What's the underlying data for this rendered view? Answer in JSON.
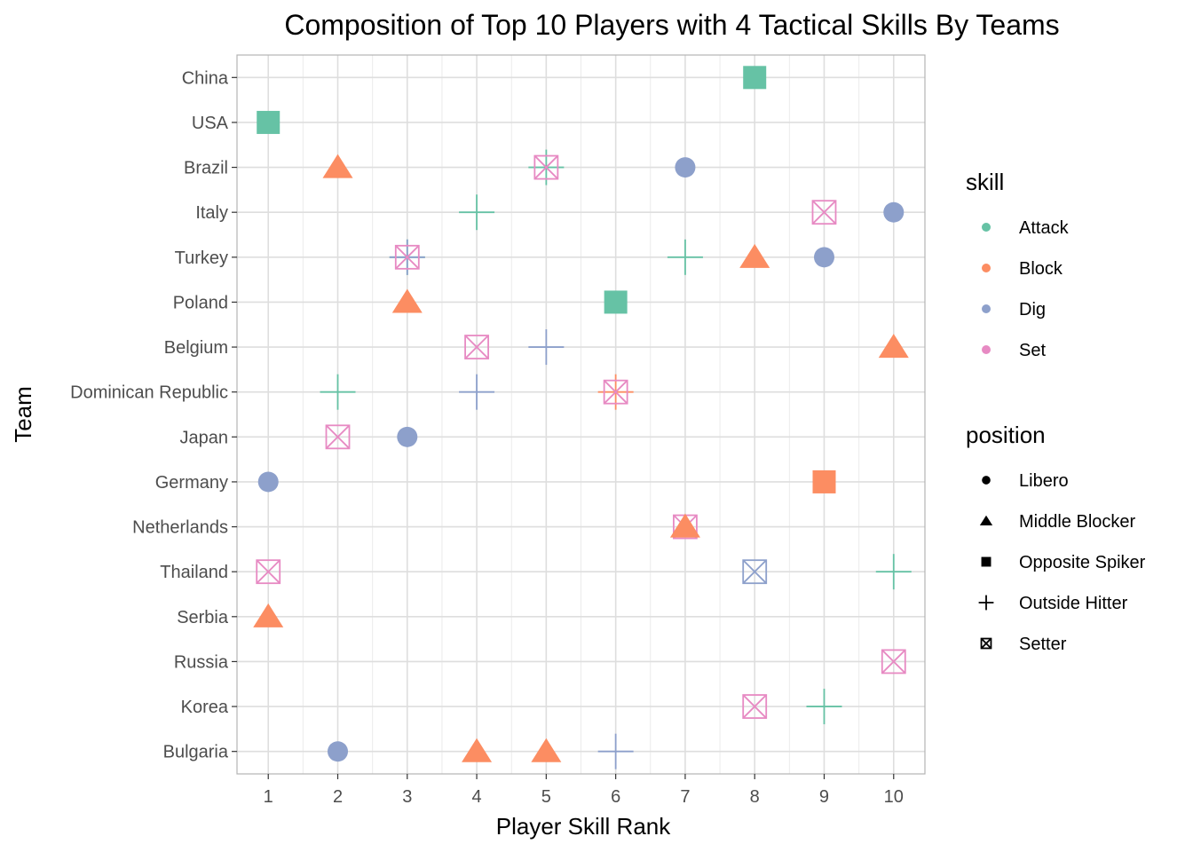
{
  "chart_data": {
    "type": "scatter",
    "title": "Composition of Top 10 Players with 4 Tactical Skills By Teams",
    "xlabel": "Player Skill Rank",
    "ylabel": "Team",
    "x_ticks": [
      1,
      2,
      3,
      4,
      5,
      6,
      7,
      8,
      9,
      10
    ],
    "xlim": [
      0.55,
      10.45
    ],
    "teams": [
      "China",
      "USA",
      "Brazil",
      "Italy",
      "Turkey",
      "Poland",
      "Belgium",
      "Dominican Republic",
      "Japan",
      "Germany",
      "Netherlands",
      "Thailand",
      "Serbia",
      "Russia",
      "Korea",
      "Bulgaria"
    ],
    "grid": true,
    "legend_position": "right",
    "legends": {
      "skill": {
        "title": "skill",
        "items": [
          {
            "label": "Attack",
            "color": "#66c2a5"
          },
          {
            "label": "Block",
            "color": "#fc8d62"
          },
          {
            "label": "Dig",
            "color": "#8da0cb"
          },
          {
            "label": "Set",
            "color": "#e78ac3"
          }
        ]
      },
      "position": {
        "title": "position",
        "items": [
          {
            "label": "Libero",
            "shape": "circle"
          },
          {
            "label": "Middle Blocker",
            "shape": "triangle"
          },
          {
            "label": "Opposite Spiker",
            "shape": "square"
          },
          {
            "label": "Outside Hitter",
            "shape": "plus"
          },
          {
            "label": "Setter",
            "shape": "boxx"
          }
        ]
      }
    },
    "points": [
      {
        "team": "China",
        "rank": 8,
        "skill": "Attack",
        "position": "Opposite Spiker"
      },
      {
        "team": "USA",
        "rank": 1,
        "skill": "Attack",
        "position": "Opposite Spiker"
      },
      {
        "team": "Brazil",
        "rank": 2,
        "skill": "Block",
        "position": "Middle Blocker"
      },
      {
        "team": "Brazil",
        "rank": 5,
        "skill": "Attack",
        "position": "Outside Hitter"
      },
      {
        "team": "Brazil",
        "rank": 5,
        "skill": "Set",
        "position": "Setter"
      },
      {
        "team": "Brazil",
        "rank": 7,
        "skill": "Dig",
        "position": "Libero"
      },
      {
        "team": "Italy",
        "rank": 4,
        "skill": "Attack",
        "position": "Outside Hitter"
      },
      {
        "team": "Italy",
        "rank": 9,
        "skill": "Set",
        "position": "Setter"
      },
      {
        "team": "Italy",
        "rank": 10,
        "skill": "Dig",
        "position": "Libero"
      },
      {
        "team": "Turkey",
        "rank": 3,
        "skill": "Attack",
        "position": "Outside Hitter"
      },
      {
        "team": "Turkey",
        "rank": 3,
        "skill": "Dig",
        "position": "Outside Hitter"
      },
      {
        "team": "Turkey",
        "rank": 3,
        "skill": "Set",
        "position": "Setter"
      },
      {
        "team": "Turkey",
        "rank": 7,
        "skill": "Attack",
        "position": "Outside Hitter"
      },
      {
        "team": "Turkey",
        "rank": 8,
        "skill": "Block",
        "position": "Middle Blocker"
      },
      {
        "team": "Turkey",
        "rank": 9,
        "skill": "Dig",
        "position": "Libero"
      },
      {
        "team": "Poland",
        "rank": 3,
        "skill": "Block",
        "position": "Middle Blocker"
      },
      {
        "team": "Poland",
        "rank": 6,
        "skill": "Attack",
        "position": "Opposite Spiker"
      },
      {
        "team": "Belgium",
        "rank": 4,
        "skill": "Set",
        "position": "Setter"
      },
      {
        "team": "Belgium",
        "rank": 5,
        "skill": "Dig",
        "position": "Outside Hitter"
      },
      {
        "team": "Belgium",
        "rank": 10,
        "skill": "Block",
        "position": "Middle Blocker"
      },
      {
        "team": "Dominican Republic",
        "rank": 2,
        "skill": "Attack",
        "position": "Outside Hitter"
      },
      {
        "team": "Dominican Republic",
        "rank": 4,
        "skill": "Dig",
        "position": "Outside Hitter"
      },
      {
        "team": "Dominican Republic",
        "rank": 6,
        "skill": "Block",
        "position": "Outside Hitter"
      },
      {
        "team": "Dominican Republic",
        "rank": 6,
        "skill": "Set",
        "position": "Setter"
      },
      {
        "team": "Japan",
        "rank": 2,
        "skill": "Set",
        "position": "Setter"
      },
      {
        "team": "Japan",
        "rank": 3,
        "skill": "Dig",
        "position": "Libero"
      },
      {
        "team": "Germany",
        "rank": 1,
        "skill": "Dig",
        "position": "Libero"
      },
      {
        "team": "Germany",
        "rank": 9,
        "skill": "Block",
        "position": "Opposite Spiker"
      },
      {
        "team": "Netherlands",
        "rank": 7,
        "skill": "Set",
        "position": "Setter"
      },
      {
        "team": "Netherlands",
        "rank": 7,
        "skill": "Block",
        "position": "Middle Blocker"
      },
      {
        "team": "Thailand",
        "rank": 1,
        "skill": "Set",
        "position": "Setter"
      },
      {
        "team": "Thailand",
        "rank": 8,
        "skill": "Dig",
        "position": "Setter"
      },
      {
        "team": "Thailand",
        "rank": 10,
        "skill": "Attack",
        "position": "Outside Hitter"
      },
      {
        "team": "Serbia",
        "rank": 1,
        "skill": "Block",
        "position": "Middle Blocker"
      },
      {
        "team": "Russia",
        "rank": 10,
        "skill": "Set",
        "position": "Setter"
      },
      {
        "team": "Korea",
        "rank": 8,
        "skill": "Set",
        "position": "Setter"
      },
      {
        "team": "Korea",
        "rank": 9,
        "skill": "Attack",
        "position": "Outside Hitter"
      },
      {
        "team": "Bulgaria",
        "rank": 2,
        "skill": "Dig",
        "position": "Libero"
      },
      {
        "team": "Bulgaria",
        "rank": 4,
        "skill": "Block",
        "position": "Middle Blocker"
      },
      {
        "team": "Bulgaria",
        "rank": 5,
        "skill": "Block",
        "position": "Middle Blocker"
      },
      {
        "team": "Bulgaria",
        "rank": 6,
        "skill": "Dig",
        "position": "Outside Hitter"
      }
    ]
  }
}
